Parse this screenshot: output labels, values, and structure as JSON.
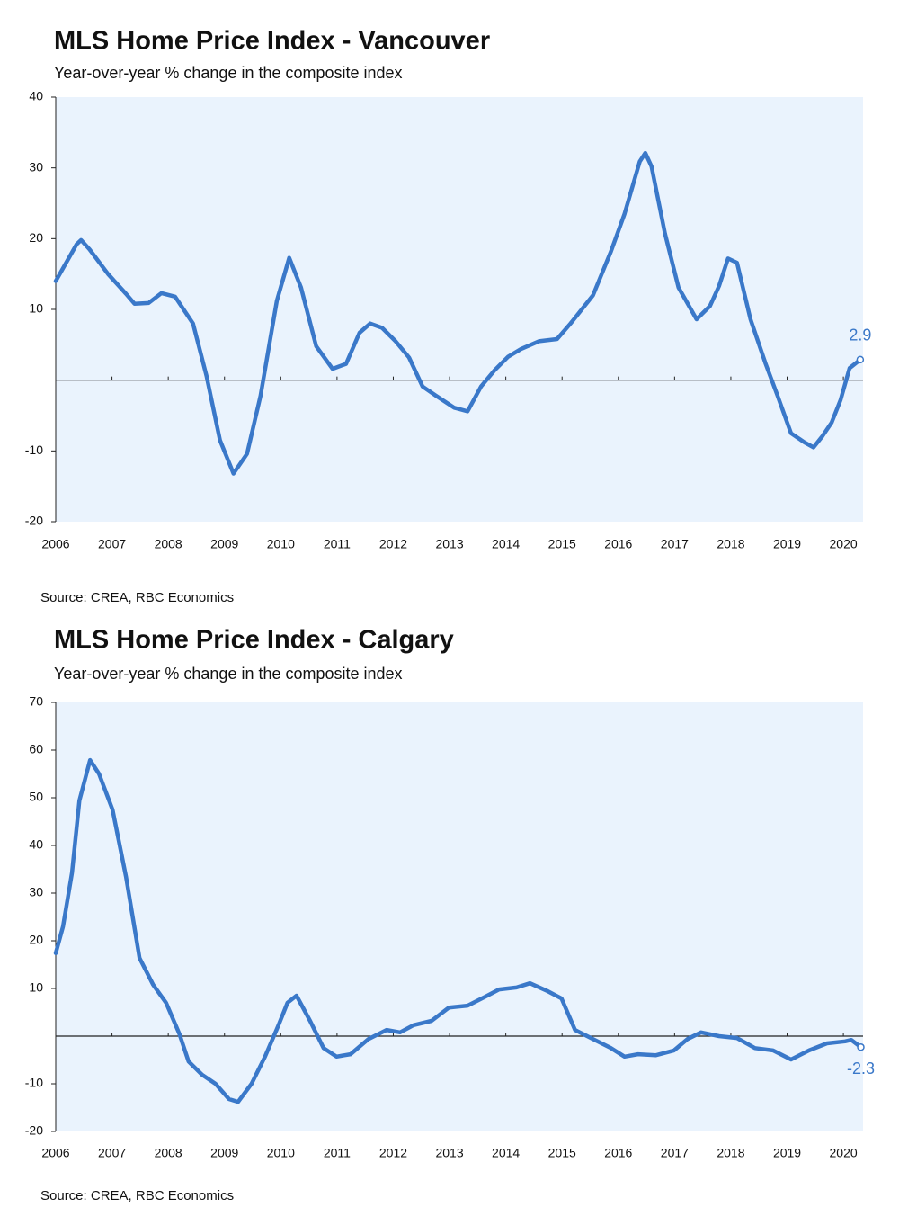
{
  "chart_data": [
    {
      "type": "line",
      "title": "MLS Home Price Index - Vancouver",
      "subtitle": "Year-over-year % change in the composite index",
      "source": "Source: CREA, RBC Economics",
      "x": [
        2006.0,
        2006.37,
        2006.45,
        2006.6,
        2006.93,
        2007.25,
        2007.4,
        2007.65,
        2007.88,
        2008.12,
        2008.44,
        2008.68,
        2008.92,
        2009.16,
        2009.4,
        2009.64,
        2009.93,
        2010.15,
        2010.36,
        2010.63,
        2010.92,
        2011.16,
        2011.4,
        2011.59,
        2011.8,
        2012.04,
        2012.28,
        2012.52,
        2012.76,
        2013.08,
        2013.32,
        2013.56,
        2013.8,
        2014.04,
        2014.27,
        2014.59,
        2014.91,
        2015.15,
        2015.55,
        2015.87,
        2016.11,
        2016.38,
        2016.48,
        2016.59,
        2016.83,
        2017.07,
        2017.39,
        2017.63,
        2017.79,
        2017.95,
        2018.11,
        2018.35,
        2018.62,
        2018.83,
        2019.07,
        2019.31,
        2019.47,
        2019.63,
        2019.79,
        2019.95,
        2020.11,
        2020.3
      ],
      "series": [
        {
          "color": "#3a78c9",
          "values": [
            14,
            19.2,
            19.8,
            18.5,
            15,
            12.2,
            10.8,
            10.9,
            12.3,
            11.8,
            8,
            0.6,
            -8.5,
            -13.2,
            -10.4,
            -2.2,
            11.2,
            17.3,
            13.1,
            4.8,
            1.6,
            2.3,
            6.7,
            8,
            7.4,
            5.5,
            3.2,
            -0.9,
            -2.2,
            -3.9,
            -4.4,
            -0.9,
            1.4,
            3.3,
            4.4,
            5.5,
            5.8,
            8,
            12,
            18.2,
            23.5,
            30.9,
            32.1,
            30.2,
            20.7,
            13.1,
            8.6,
            10.5,
            13.3,
            17.2,
            16.6,
            8.6,
            2.3,
            -2.2,
            -7.5,
            -8.8,
            -9.5,
            -7.9,
            -6,
            -2.8,
            1.7,
            2.9
          ]
        }
      ],
      "label_last": true,
      "label_position": "above",
      "xlim": [
        2006,
        2020.35
      ],
      "xticks": [
        2006,
        2007,
        2008,
        2009,
        2010,
        2011,
        2012,
        2013,
        2014,
        2015,
        2016,
        2017,
        2018,
        2019,
        2020
      ],
      "ylim": [
        -20,
        40
      ],
      "yticks": [
        -20,
        -10,
        10,
        20,
        30,
        40
      ],
      "grid": false,
      "background": "#eaf3fd"
    },
    {
      "type": "line",
      "title": "MLS Home Price Index - Calgary",
      "subtitle": "Year-over-year % change in the composite index",
      "source": "Source: CREA, RBC Economics",
      "x": [
        2006.0,
        2006.13,
        2006.29,
        2006.42,
        2006.61,
        2006.77,
        2007.01,
        2007.25,
        2007.49,
        2007.73,
        2007.96,
        2008.2,
        2008.36,
        2008.6,
        2008.84,
        2009.08,
        2009.24,
        2009.48,
        2009.72,
        2009.96,
        2010.12,
        2010.28,
        2010.52,
        2010.76,
        2010.99,
        2011.24,
        2011.56,
        2011.88,
        2012.12,
        2012.36,
        2012.68,
        2012.99,
        2013.32,
        2013.64,
        2013.88,
        2014.19,
        2014.43,
        2014.75,
        2014.99,
        2015.23,
        2015.55,
        2015.87,
        2016.11,
        2016.35,
        2016.67,
        2016.99,
        2017.23,
        2017.47,
        2017.79,
        2018.11,
        2018.43,
        2018.75,
        2019.07,
        2019.39,
        2019.71,
        2020.03,
        2020.14,
        2020.31
      ],
      "series": [
        {
          "color": "#3a78c9",
          "values": [
            17.4,
            23,
            34.3,
            49.4,
            57.9,
            55,
            47.5,
            33.4,
            16.4,
            10.8,
            7,
            0.4,
            -5.3,
            -8.1,
            -10,
            -13.2,
            -13.8,
            -10,
            -4.3,
            2.3,
            7,
            8.5,
            3.2,
            -2.5,
            -4.3,
            -3.8,
            -0.6,
            1.3,
            0.8,
            2.3,
            3.2,
            6,
            6.4,
            8.3,
            9.8,
            10.2,
            11.1,
            9.4,
            7.9,
            1.3,
            -0.6,
            -2.5,
            -4.3,
            -3.8,
            -4,
            -3,
            -0.6,
            0.8,
            0,
            -0.4,
            -2.5,
            -3,
            -4.9,
            -3,
            -1.5,
            -1.1,
            -0.8,
            -2.3
          ]
        }
      ],
      "label_last": true,
      "label_position": "below",
      "xlim": [
        2006,
        2020.35
      ],
      "xticks": [
        2006,
        2007,
        2008,
        2009,
        2010,
        2011,
        2012,
        2013,
        2014,
        2015,
        2016,
        2017,
        2018,
        2019,
        2020
      ],
      "ylim": [
        -20,
        70
      ],
      "yticks": [
        -20,
        -10,
        10,
        20,
        30,
        40,
        50,
        60,
        70
      ],
      "grid": false,
      "background": "#eaf3fd"
    }
  ]
}
